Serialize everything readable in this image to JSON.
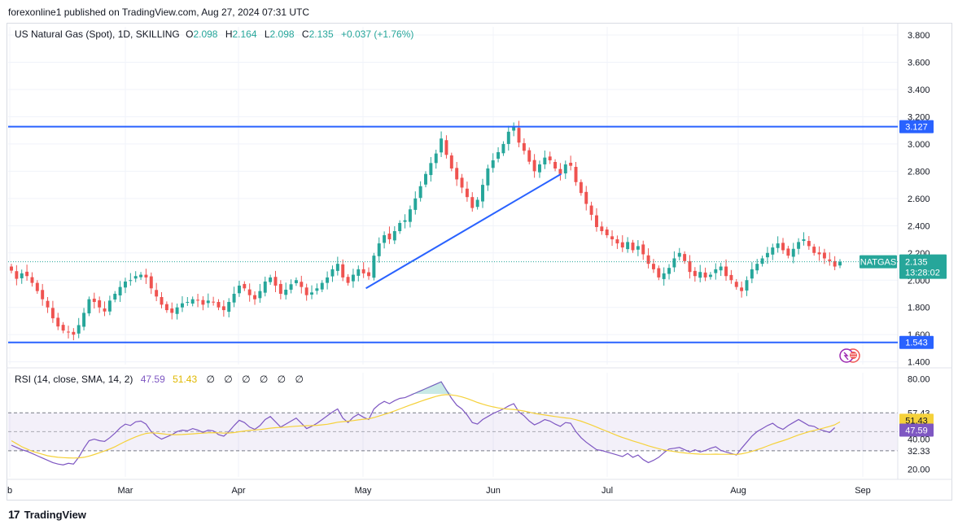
{
  "header": {
    "published": "forexonline1 published on TradingView.com, Aug 27, 2024 07:31 UTC"
  },
  "legend": {
    "symbol": "US Natural Gas (Spot), 1D, SKILLING",
    "o_label": "O",
    "o": "2.098",
    "h_label": "H",
    "h": "2.164",
    "l_label": "L",
    "l": "2.098",
    "c_label": "C",
    "c": "2.135",
    "change": "+0.037 (+1.76%)"
  },
  "rsi_legend": {
    "label": "RSI (14, close, SMA, 14, 2)",
    "rsi": "47.59",
    "sma": "51.43",
    "empty": [
      "∅",
      "∅",
      "∅",
      "∅",
      "∅",
      "∅"
    ]
  },
  "footer": {
    "brand": "TradingView",
    "logo": "17"
  },
  "colors": {
    "up": "#26a69a",
    "down": "#ef5350",
    "level": "#2962ff",
    "trend": "#2962ff",
    "rsi": "#7e57c2",
    "rsi_sma": "#f5d13a"
  },
  "chart_data": [
    {
      "type": "candlestick",
      "title": "US Natural Gas (Spot), 1D, SKILLING",
      "x_labels": [
        "b",
        "Mar",
        "Apr",
        "May",
        "Jun",
        "Jul",
        "Aug",
        "Sep"
      ],
      "y_ticks": [
        "3.800",
        "3.600",
        "3.400",
        "3.200",
        "3.000",
        "2.800",
        "2.600",
        "2.400",
        "2.200",
        "2.000",
        "1.800",
        "1.600",
        "1.400"
      ],
      "ylim": [
        1.38,
        3.86
      ],
      "levels": [
        {
          "value": 3.127,
          "label": "3.127"
        },
        {
          "value": 1.543,
          "label": "1.543"
        }
      ],
      "trendline": {
        "from": {
          "date": "2024-04-30",
          "value": 1.94
        },
        "to": {
          "date": "2024-06-18",
          "value": 2.78
        }
      },
      "last_price": {
        "symbol": "NATGAS",
        "value": 2.135,
        "label": "2.135",
        "countdown": "13:28:02"
      },
      "closes": [
        2.07,
        2.01,
        2.05,
        2.03,
        1.98,
        1.92,
        1.86,
        1.8,
        1.72,
        1.66,
        1.63,
        1.62,
        1.6,
        1.67,
        1.76,
        1.86,
        1.84,
        1.8,
        1.77,
        1.85,
        1.9,
        1.95,
        1.99,
        2.0,
        2.03,
        2.04,
        2.02,
        1.94,
        1.88,
        1.82,
        1.78,
        1.76,
        1.8,
        1.83,
        1.84,
        1.86,
        1.85,
        1.82,
        1.85,
        1.84,
        1.8,
        1.78,
        1.84,
        1.9,
        1.96,
        1.94,
        1.89,
        1.86,
        1.92,
        1.99,
        2.02,
        1.96,
        1.9,
        1.93,
        1.97,
        2.0,
        1.95,
        1.89,
        1.91,
        1.94,
        1.98,
        2.02,
        2.08,
        2.12,
        2.02,
        1.98,
        2.04,
        2.08,
        2.05,
        2.03,
        2.18,
        2.27,
        2.33,
        2.3,
        2.36,
        2.42,
        2.44,
        2.52,
        2.6,
        2.69,
        2.78,
        2.86,
        2.93,
        3.04,
        2.92,
        2.82,
        2.74,
        2.68,
        2.61,
        2.53,
        2.59,
        2.7,
        2.82,
        2.88,
        2.94,
        3.0,
        3.09,
        3.13,
        3.01,
        2.95,
        2.87,
        2.8,
        2.85,
        2.9,
        2.88,
        2.82,
        2.78,
        2.85,
        2.84,
        2.72,
        2.64,
        2.56,
        2.48,
        2.39,
        2.36,
        2.33,
        2.3,
        2.27,
        2.24,
        2.28,
        2.22,
        2.25,
        2.19,
        2.12,
        2.08,
        2.02,
        2.05,
        2.09,
        2.16,
        2.2,
        2.14,
        2.06,
        2.03,
        2.06,
        2.02,
        2.04,
        2.08,
        2.1,
        2.03,
        2.0,
        1.95,
        1.92,
        2.0,
        2.08,
        2.12,
        2.16,
        2.2,
        2.24,
        2.27,
        2.22,
        2.18,
        2.23,
        2.28,
        2.3,
        2.25,
        2.2,
        2.19,
        2.16,
        2.14,
        2.1,
        2.135
      ]
    },
    {
      "type": "line",
      "title": "RSI (14, close, SMA, 14, 2)",
      "y_ticks": [
        "80.00",
        "57.43",
        "51.43",
        "47.59",
        "40.00",
        "32.33",
        "20.00"
      ],
      "ylim": [
        15,
        84
      ],
      "band": [
        32.33,
        57.43
      ],
      "midline": 45,
      "series": [
        {
          "name": "RSI",
          "values": [
            36.0,
            34.5,
            33.0,
            32.0,
            30.5,
            29.0,
            27.5,
            26.0,
            24.5,
            23.5,
            23.0,
            24.0,
            23.5,
            28.0,
            34.0,
            39.0,
            40.0,
            39.0,
            38.5,
            41.0,
            44.0,
            47.5,
            50.0,
            49.0,
            51.5,
            52.0,
            50.0,
            45.0,
            42.0,
            40.0,
            41.5,
            43.0,
            45.0,
            46.0,
            45.5,
            47.0,
            46.0,
            44.5,
            46.0,
            45.5,
            43.0,
            42.0,
            45.0,
            49.0,
            52.5,
            51.0,
            48.0,
            46.5,
            49.0,
            53.0,
            55.0,
            51.5,
            48.0,
            50.0,
            52.0,
            54.0,
            50.5,
            47.0,
            48.5,
            50.5,
            53.0,
            55.5,
            58.0,
            60.0,
            54.0,
            51.0,
            54.5,
            56.5,
            54.5,
            53.0,
            60.0,
            63.0,
            65.0,
            63.5,
            65.5,
            67.0,
            67.5,
            69.0,
            70.5,
            72.0,
            73.5,
            75.0,
            76.5,
            78.0,
            72.5,
            67.0,
            62.5,
            60.0,
            56.0,
            51.0,
            50.0,
            53.0,
            55.0,
            57.0,
            58.5,
            60.0,
            62.0,
            63.5,
            58.0,
            55.5,
            52.0,
            49.5,
            51.0,
            53.0,
            52.0,
            50.0,
            48.5,
            51.0,
            50.5,
            45.0,
            41.0,
            38.0,
            35.5,
            33.0,
            32.5,
            31.5,
            30.5,
            29.5,
            28.5,
            30.5,
            28.0,
            29.5,
            26.5,
            24.5,
            26.0,
            28.0,
            31.0,
            33.5,
            34.0,
            34.5,
            33.0,
            31.5,
            33.0,
            31.5,
            32.5,
            34.0,
            35.0,
            32.5,
            31.5,
            30.5,
            29.5,
            34.0,
            38.0,
            42.0,
            45.0,
            47.0,
            49.0,
            50.5,
            48.0,
            46.5,
            49.0,
            51.0,
            53.0,
            51.0,
            49.0,
            48.5,
            46.5,
            45.5,
            44.5,
            47.59
          ]
        },
        {
          "name": "RSI SMA",
          "values": [
            39.0,
            37.0,
            35.0,
            33.5,
            32.0,
            31.0,
            30.0,
            29.0,
            28.5,
            28.0,
            27.8,
            27.6,
            27.5,
            27.6,
            28.0,
            28.8,
            29.8,
            31.0,
            32.2,
            33.5,
            35.0,
            36.8,
            38.5,
            40.0,
            41.5,
            42.8,
            43.8,
            44.2,
            44.0,
            43.6,
            43.2,
            43.0,
            43.0,
            43.1,
            43.3,
            43.5,
            43.8,
            44.0,
            44.2,
            44.3,
            44.2,
            44.0,
            44.1,
            44.4,
            44.9,
            45.4,
            45.8,
            46.1,
            46.4,
            46.8,
            47.3,
            47.6,
            47.8,
            48.0,
            48.3,
            48.6,
            48.8,
            48.9,
            49.0,
            49.2,
            49.5,
            49.9,
            50.5,
            51.2,
            51.6,
            51.9,
            52.3,
            52.8,
            53.2,
            53.5,
            54.3,
            55.3,
            56.4,
            57.5,
            58.7,
            60.0,
            61.3,
            62.6,
            63.8,
            65.0,
            66.2,
            67.3,
            68.3,
            69.2,
            69.5,
            69.3,
            68.8,
            68.0,
            66.9,
            65.6,
            64.3,
            63.2,
            62.2,
            61.4,
            60.7,
            60.2,
            59.9,
            59.7,
            59.2,
            58.6,
            57.9,
            57.1,
            56.5,
            56.0,
            55.5,
            55.0,
            54.5,
            54.1,
            53.7,
            52.9,
            51.9,
            50.7,
            49.4,
            48.0,
            46.6,
            45.2,
            43.8,
            42.4,
            41.1,
            40.0,
            38.8,
            37.8,
            36.7,
            35.6,
            34.6,
            33.7,
            32.9,
            32.3,
            31.8,
            31.3,
            30.9,
            30.5,
            30.3,
            30.1,
            30.0,
            30.0,
            30.1,
            30.0,
            30.0,
            30.0,
            29.9,
            30.3,
            31.0,
            31.9,
            33.0,
            34.2,
            35.5,
            36.8,
            37.9,
            39.0,
            40.2,
            41.5,
            42.8,
            43.9,
            44.9,
            45.8,
            46.6,
            47.5,
            48.5,
            49.5,
            51.43
          ]
        }
      ]
    }
  ]
}
